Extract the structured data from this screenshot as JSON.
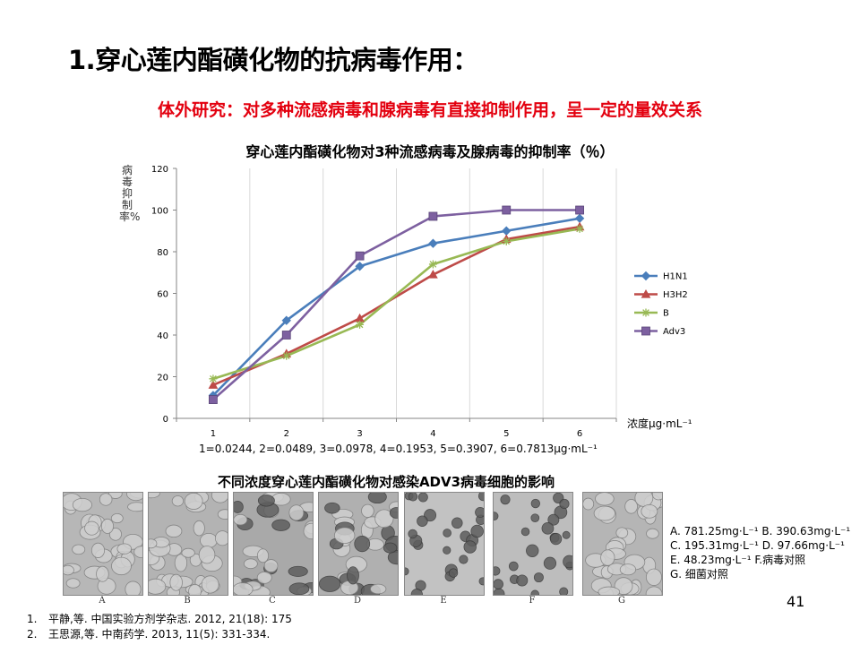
{
  "slide": {
    "title": "1.穿心莲内酯磺化物的抗病毒作用：",
    "subtitle": "体外研究：对多种流感病毒和腺病毒有直接抑制作用，呈一定的量效关系",
    "page_number": "41"
  },
  "chart_data": {
    "type": "line",
    "title": "穿心莲内酯磺化物对3种流感病毒及腺病毒的抑制率（％）",
    "ylabel": "病毒抑制率%",
    "xlabel": "浓度μg·mL⁻¹",
    "x": [
      1,
      2,
      3,
      4,
      5,
      6
    ],
    "ylim": [
      0,
      120
    ],
    "yticks": [
      0,
      20,
      40,
      60,
      80,
      100,
      120
    ],
    "grid": "vertical",
    "legend_position": "right",
    "series": [
      {
        "name": "H1N1",
        "color": "#4a7ebb",
        "marker": "diamond",
        "values": [
          11,
          47,
          73,
          84,
          90,
          96
        ]
      },
      {
        "name": "H3H2",
        "color": "#be4b48",
        "marker": "triangle",
        "values": [
          16,
          31,
          48,
          69,
          86,
          92
        ]
      },
      {
        "name": "B",
        "color": "#98b954",
        "marker": "star",
        "values": [
          19,
          30,
          45,
          74,
          85,
          91
        ]
      },
      {
        "name": "Adv3",
        "color": "#7d60a0",
        "marker": "square",
        "values": [
          9,
          40,
          78,
          97,
          100,
          100
        ]
      }
    ],
    "note": "1=0.0244, 2=0.0489, 3=0.0978, 4=0.1953, 5=0.3907, 6=0.7813μg·mL⁻¹"
  },
  "images": {
    "title": "不同浓度穿心莲内酯磺化物对感染ADV3病毒细胞的影响",
    "panels": [
      {
        "label": "A",
        "tone": "#b7b7b7",
        "cells": "confluent"
      },
      {
        "label": "B",
        "tone": "#b3b3b3",
        "cells": "confluent"
      },
      {
        "label": "C",
        "tone": "#a9a9a9",
        "cells": "mixed"
      },
      {
        "label": "D",
        "tone": "#b0b0b0",
        "cells": "mixed"
      },
      {
        "label": "E",
        "tone": "#c2c2c2",
        "cells": "rounded"
      },
      {
        "label": "F",
        "tone": "#bdbdbd",
        "cells": "rounded"
      },
      {
        "label": "G",
        "tone": "#b5b5b5",
        "cells": "confluent"
      }
    ],
    "legend": [
      "A. 781.25mg·L⁻¹ B. 390.63mg·L⁻¹",
      "C. 195.31mg·L⁻¹ D. 97.66mg·L⁻¹",
      "E. 48.23mg·L⁻¹   F.病毒对照",
      "G. 细菌对照"
    ]
  },
  "references": [
    {
      "num": "1.",
      "text": "平静,等. 中国实验方剂学杂志. 2012, 21(18): 175"
    },
    {
      "num": "2.",
      "text": "王思源,等. 中南药学. 2013, 11(5): 331-334."
    }
  ]
}
